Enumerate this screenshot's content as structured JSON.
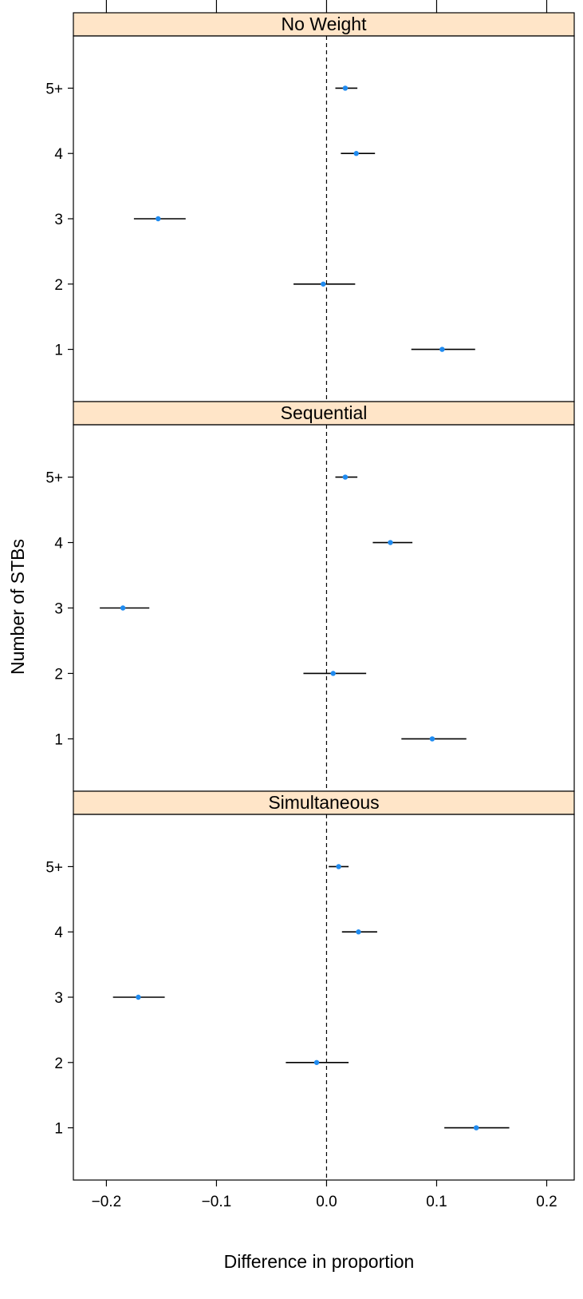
{
  "chart_data": {
    "type": "scatter",
    "xlabel": "Difference in proportion",
    "ylabel": "Number of STBs",
    "xlim": [
      -0.23,
      0.225
    ],
    "x_ticks": [
      -0.2,
      -0.1,
      0.0,
      0.1,
      0.2
    ],
    "x_tick_labels": [
      "−0.2",
      "−0.1",
      "0.0",
      "0.1",
      "0.2"
    ],
    "categories": [
      "5+",
      "4",
      "3",
      "2",
      "1"
    ],
    "reference_line": 0,
    "grid": false,
    "colors": {
      "point": "#1f8bf0",
      "strip": "#ffe5c8",
      "interval": "#000000"
    },
    "panels": [
      {
        "strip": "No Weight",
        "points": [
          {
            "category": "5+",
            "estimate": 0.017,
            "lower": 0.008,
            "upper": 0.028
          },
          {
            "category": "4",
            "estimate": 0.027,
            "lower": 0.013,
            "upper": 0.044
          },
          {
            "category": "3",
            "estimate": -0.153,
            "lower": -0.175,
            "upper": -0.128
          },
          {
            "category": "2",
            "estimate": -0.003,
            "lower": -0.03,
            "upper": 0.026
          },
          {
            "category": "1",
            "estimate": 0.105,
            "lower": 0.077,
            "upper": 0.135
          }
        ]
      },
      {
        "strip": "Sequential",
        "points": [
          {
            "category": "5+",
            "estimate": 0.017,
            "lower": 0.008,
            "upper": 0.028
          },
          {
            "category": "4",
            "estimate": 0.058,
            "lower": 0.042,
            "upper": 0.078
          },
          {
            "category": "3",
            "estimate": -0.185,
            "lower": -0.206,
            "upper": -0.161
          },
          {
            "category": "2",
            "estimate": 0.006,
            "lower": -0.021,
            "upper": 0.036
          },
          {
            "category": "1",
            "estimate": 0.096,
            "lower": 0.068,
            "upper": 0.127
          }
        ]
      },
      {
        "strip": "Simultaneous",
        "points": [
          {
            "category": "5+",
            "estimate": 0.011,
            "lower": 0.002,
            "upper": 0.02
          },
          {
            "category": "4",
            "estimate": 0.029,
            "lower": 0.014,
            "upper": 0.046
          },
          {
            "category": "3",
            "estimate": -0.171,
            "lower": -0.194,
            "upper": -0.147
          },
          {
            "category": "2",
            "estimate": -0.009,
            "lower": -0.037,
            "upper": 0.02
          },
          {
            "category": "1",
            "estimate": 0.136,
            "lower": 0.107,
            "upper": 0.166
          }
        ]
      }
    ]
  }
}
